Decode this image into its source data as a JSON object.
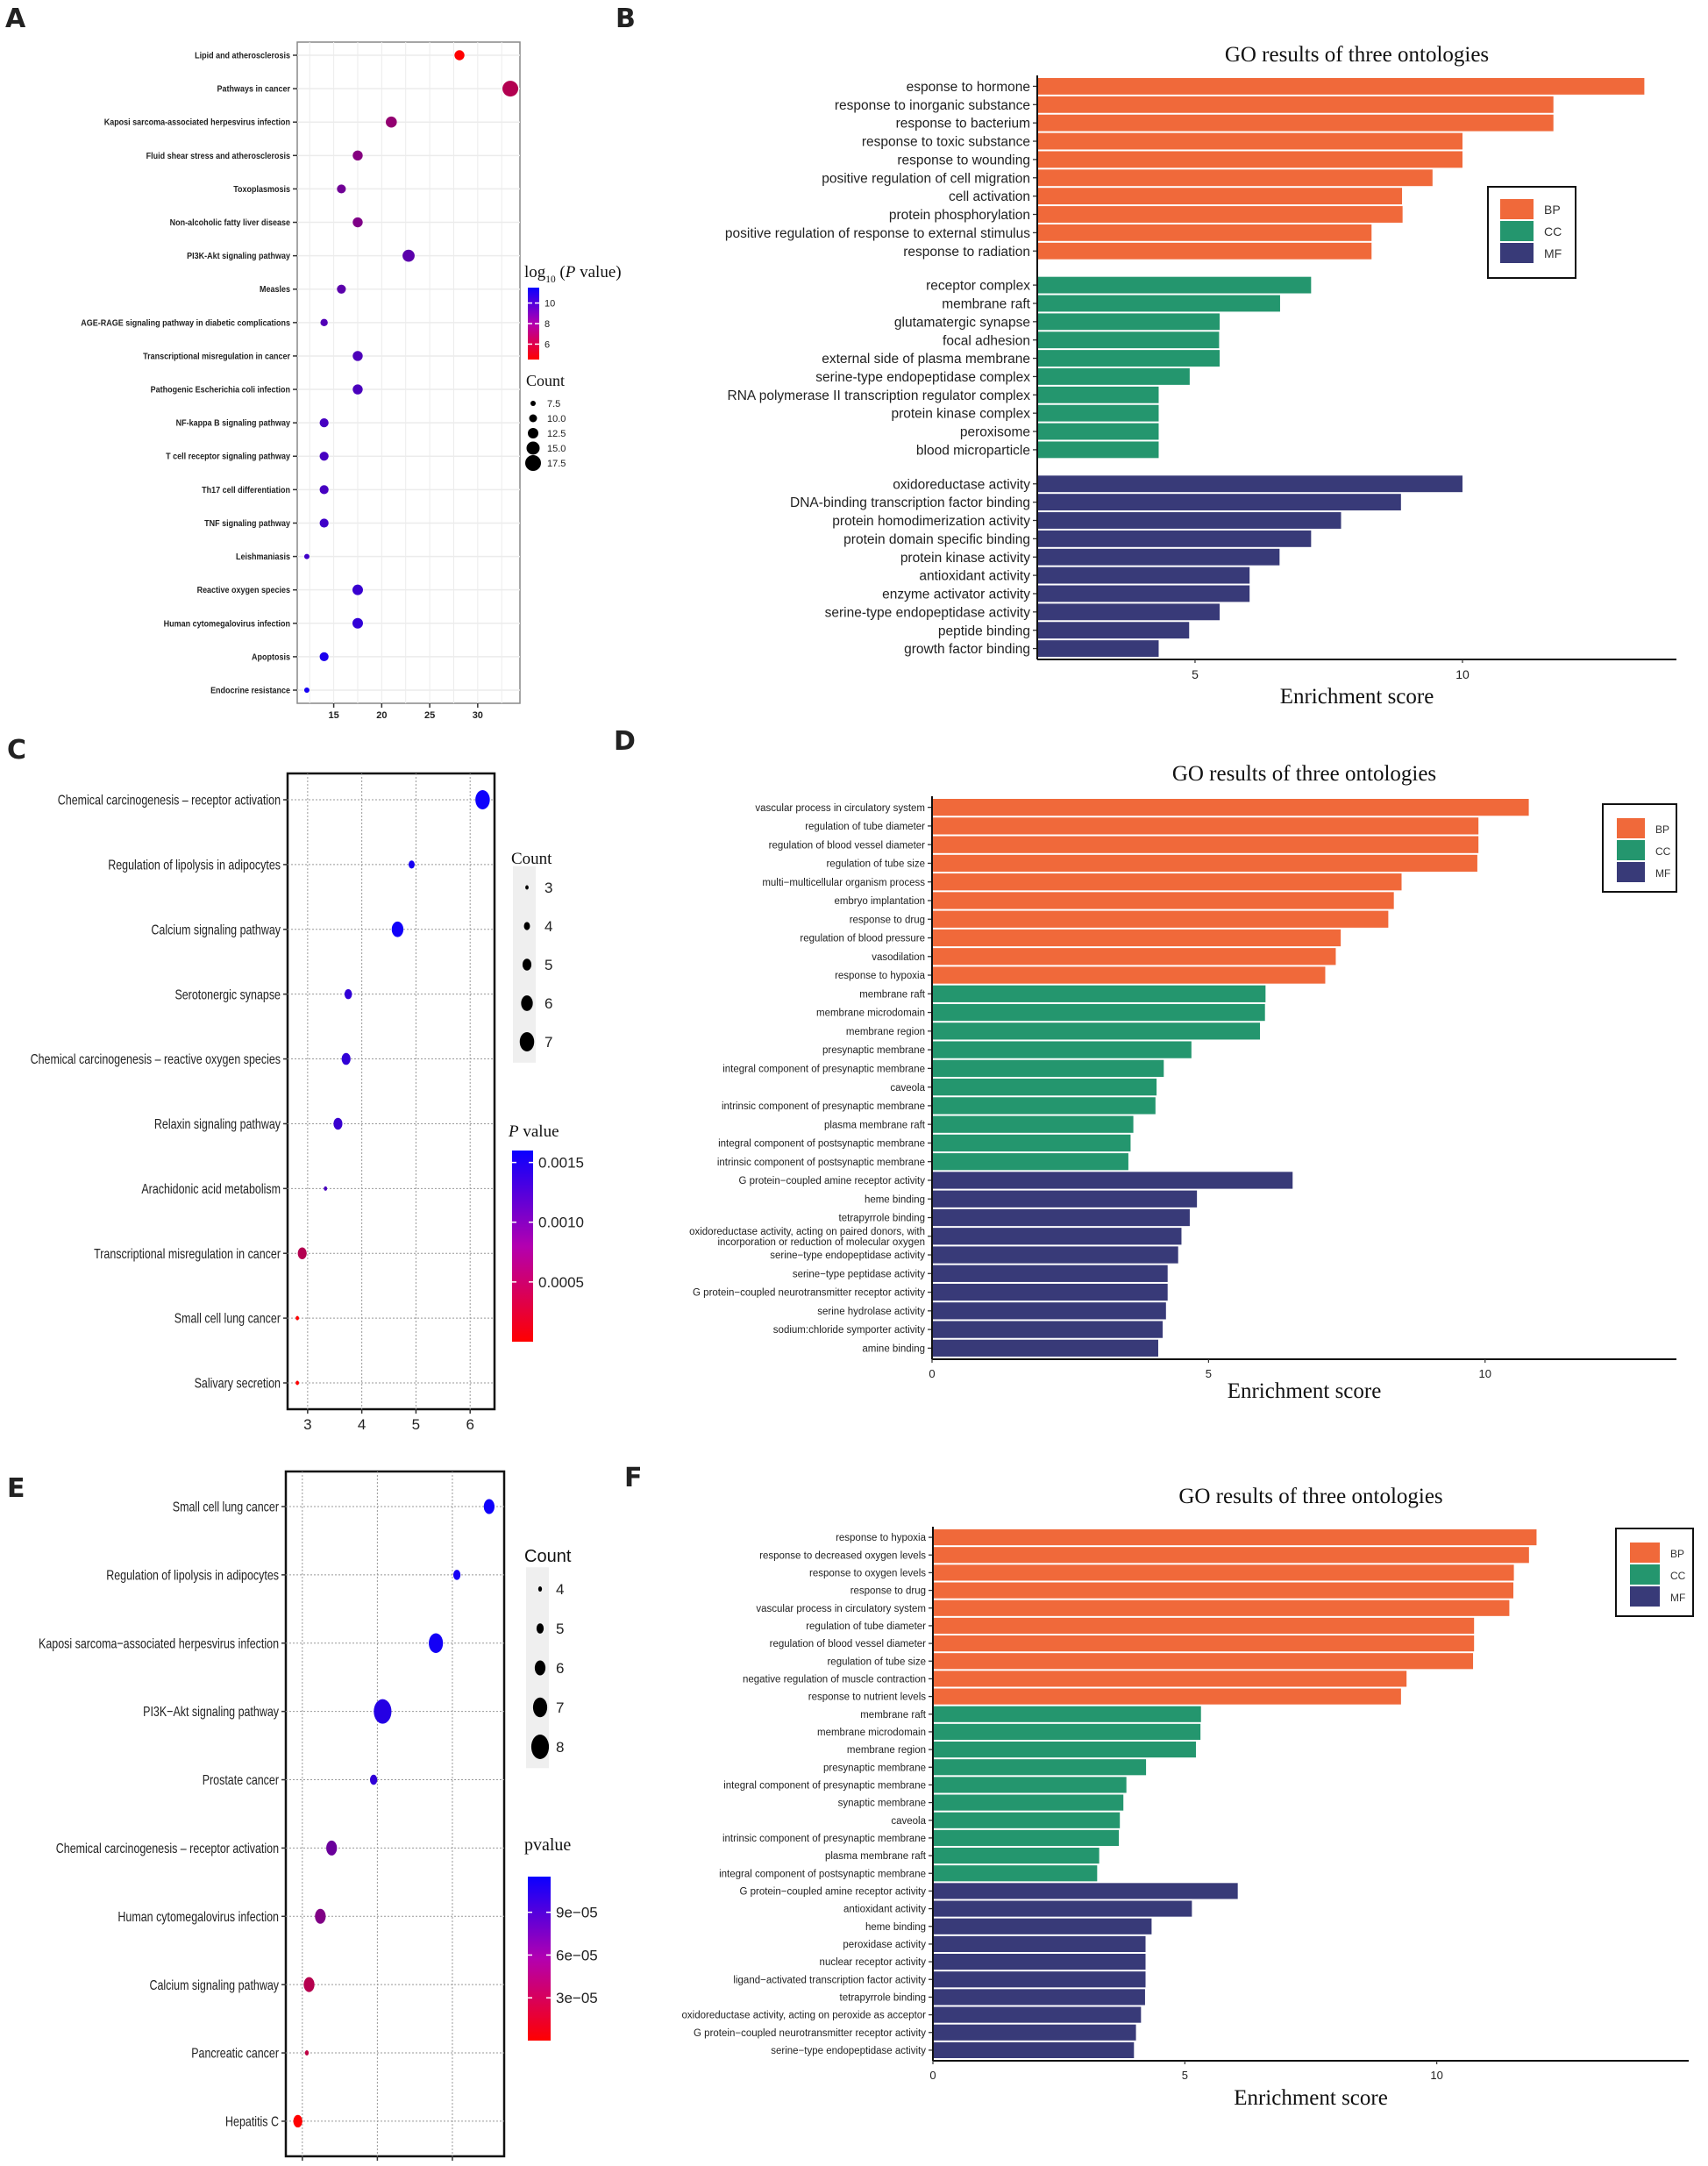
{
  "panels": {
    "A": {
      "letter": "A"
    },
    "B": {
      "letter": "B"
    },
    "C": {
      "letter": "C"
    },
    "D": {
      "letter": "D"
    },
    "E": {
      "letter": "E"
    },
    "F": {
      "letter": "F"
    }
  },
  "colors": {
    "BP": "#f0693a",
    "CC": "#24966e",
    "MF": "#383a78",
    "low": "#0b00ff",
    "high": "#ff0000"
  },
  "chart_data": [
    {
      "id": "A",
      "type": "scatter",
      "subtype": "bubble",
      "title": "",
      "xlabel": "",
      "ylabel": "",
      "xlim": [
        11.2,
        34.4
      ],
      "xticks": [
        15,
        20,
        25,
        30
      ],
      "grid": true,
      "color_legend": {
        "title_main": "log",
        "title_sub": "10",
        "title_rest": " (P value)",
        "ticks": [
          10,
          8,
          6
        ],
        "range": [
          4.5,
          11.5
        ]
      },
      "size_legend": {
        "title": "Count",
        "ticks": [
          "7.5",
          "10.0",
          "12.5",
          "15.0",
          "17.5"
        ]
      },
      "legend_position": "right",
      "categories": [
        "Lipid and atherosclerosis",
        "Pathways in cancer",
        "Kaposi sarcoma-associated herpesvirus infection",
        "Fluid shear stress and atherosclerosis",
        "Toxoplasmosis",
        "Non-alcoholic fatty liver disease",
        "PI3K-Akt signaling pathway",
        "Measles",
        "AGE-RAGE signaling pathway in diabetic complications",
        "Transcriptional misregulation in cancer",
        "Pathogenic Escherichia coli infection",
        "NF-kappa B signaling pathway",
        "T cell receptor signaling pathway",
        "Th17 cell differentiation",
        "TNF signaling pathway",
        "Leishmaniasis",
        "Reactive oxygen species",
        "Human cytomegalovirus infection",
        "Apoptosis",
        "Endocrine resistance"
      ],
      "x": [
        28.1,
        33.4,
        21.0,
        17.5,
        15.8,
        17.5,
        22.8,
        15.8,
        14.0,
        17.5,
        17.5,
        14.0,
        14.0,
        14.0,
        14.0,
        12.2,
        17.5,
        17.5,
        14.0,
        12.2
      ],
      "count": [
        12,
        17.5,
        13,
        12,
        11,
        12,
        14,
        11,
        9.5,
        12,
        12,
        11,
        11,
        11,
        11,
        7.5,
        12.5,
        12.5,
        11,
        7.5
      ],
      "color_value": [
        11.5,
        9.3,
        8.4,
        8.0,
        7.4,
        7.8,
        6.8,
        6.8,
        6.5,
        6.4,
        6.3,
        6.2,
        6.2,
        6.2,
        6.0,
        6.0,
        5.8,
        5.6,
        5.0,
        4.8
      ]
    },
    {
      "id": "B",
      "type": "bar",
      "orientation": "horizontal",
      "title": "GO results of three ontologies",
      "xlabel": "Enrichment score",
      "ylabel": "",
      "xlim": [
        2.05,
        14.0
      ],
      "xticks": [
        5,
        10
      ],
      "legend": [
        "BP",
        "CC",
        "MF"
      ],
      "legend_position": "right",
      "grouped_gaps": true,
      "series": [
        {
          "name": "BP",
          "categories": [
            "esponse to hormone",
            "response to inorganic substance",
            "response to bacterium",
            "response to toxic substance",
            "response to wounding",
            "positive regulation of cell migration",
            "cell activation",
            "protein phosphorylation",
            "positive regulation of response to external stimulus",
            "response to radiation"
          ],
          "values": [
            13.4,
            11.7,
            11.7,
            10.0,
            10.0,
            9.44,
            8.87,
            8.88,
            8.3,
            8.3
          ]
        },
        {
          "name": "CC",
          "categories": [
            "receptor complex",
            "membrane raft",
            "glutamatergic synapse",
            "focal adhesion",
            "external side of plasma membrane",
            "serine-type endopeptidase complex",
            "RNA polymerase II transcription regulator complex",
            "protein kinase complex",
            "peroxisome",
            "blood microparticle"
          ],
          "values": [
            7.17,
            6.59,
            5.46,
            5.45,
            5.46,
            4.9,
            4.32,
            4.32,
            4.32,
            4.32
          ]
        },
        {
          "name": "MF",
          "categories": [
            "oxidoreductase activity",
            "DNA-binding transcription factor binding",
            "protein homodimerization activity",
            "protein domain specific binding",
            "protein kinase activity",
            "antioxidant activity",
            "enzyme activator activity",
            "serine-type endopeptidase activity",
            "peptide binding",
            "growth factor binding"
          ],
          "values": [
            10.0,
            8.85,
            7.73,
            7.17,
            6.58,
            6.02,
            6.02,
            5.46,
            4.89,
            4.32
          ]
        }
      ]
    },
    {
      "id": "C",
      "type": "scatter",
      "subtype": "bubble",
      "title": "",
      "xlabel": "",
      "ylabel": "",
      "xlim": [
        2.63,
        6.45
      ],
      "xticks": [
        3,
        4,
        5,
        6
      ],
      "grid": true,
      "size_legend": {
        "title": "Count",
        "ticks": [
          "3",
          "4",
          "5",
          "6",
          "7"
        ]
      },
      "color_legend": {
        "title_italic": "P",
        "title_rest": " value",
        "ticks": [
          "0.0015",
          "0.0010",
          "0.0005"
        ],
        "tick_values": [
          0.0015,
          0.001,
          0.0005
        ],
        "range": [
          0.0,
          0.0016
        ]
      },
      "legend_position": "right",
      "categories": [
        "Chemical carcinogenesis – receptor activation",
        "Regulation of lipolysis in adipocytes",
        "Calcium signaling pathway",
        "Serotonergic synapse",
        "Chemical carcinogenesis – reactive oxygen species",
        "Relaxin signaling pathway",
        "Arachidonic acid metabolism",
        "Transcriptional misregulation in cancer",
        "Small cell lung cancer",
        "Salivary secretion"
      ],
      "x": [
        6.23,
        4.92,
        4.66,
        3.75,
        3.71,
        3.56,
        3.33,
        2.9,
        2.81,
        2.81
      ],
      "count": [
        7,
        4,
        6,
        4.5,
        5,
        5,
        3,
        5,
        3,
        3
      ],
      "color_value": [
        2e-05,
        8e-05,
        4e-05,
        0.00025,
        0.00025,
        0.0003,
        0.0004,
        0.0011,
        0.0016,
        0.0016
      ]
    },
    {
      "id": "D",
      "type": "bar",
      "orientation": "horizontal",
      "title": "GO results of three ontologies",
      "xlabel": "Enrichment score",
      "ylabel": "",
      "xlim": [
        0,
        13.46
      ],
      "xticks": [
        0,
        5,
        10
      ],
      "legend": [
        "BP",
        "CC",
        "MF"
      ],
      "legend_position": "top-right",
      "grouped_gaps": false,
      "series": [
        {
          "name": "BP",
          "categories": [
            "vascular process in circulatory system",
            "regulation of tube diameter",
            "regulation of blood vessel diameter",
            "regulation of tube size",
            "multi−multicellular organism process",
            "embryo implantation",
            "response to drug",
            "regulation of blood pressure",
            "vasodilation",
            "response to hypoxia"
          ],
          "values": [
            10.79,
            9.88,
            9.88,
            9.86,
            8.49,
            8.35,
            8.25,
            7.39,
            7.3,
            7.11
          ]
        },
        {
          "name": "CC",
          "categories": [
            "membrane raft",
            "membrane microdomain",
            "membrane region",
            "presynaptic membrane",
            "integral component of presynaptic membrane",
            "caveola",
            "intrinsic component of presynaptic membrane",
            "plasma membrane raft",
            "integral component of postsynaptic membrane",
            "intrinsic component of postsynaptic membrane"
          ],
          "values": [
            6.03,
            6.02,
            5.93,
            4.69,
            4.19,
            4.06,
            4.04,
            3.64,
            3.59,
            3.55
          ]
        },
        {
          "name": "MF",
          "categories": [
            "G protein−coupled amine receptor activity",
            "heme binding",
            "tetrapyrrole binding",
            "oxidoreductase activity, acting on paired donors, with\nincorporation or reduction of molecular oxygen",
            "serine−type endopeptidase activity",
            "serine−type peptidase activity",
            "G protein−coupled neurotransmitter receptor activity",
            "serine hydrolase activity",
            "sodium:chloride symporter activity",
            "amine binding"
          ],
          "values": [
            6.52,
            4.79,
            4.66,
            4.51,
            4.45,
            4.26,
            4.26,
            4.23,
            4.17,
            4.09
          ]
        }
      ]
    },
    {
      "id": "E",
      "type": "scatter",
      "subtype": "bubble",
      "title": "",
      "xlabel": "",
      "ylabel": "",
      "xlim": [
        3.78,
        6.69
      ],
      "xticks": [
        4,
        5,
        6
      ],
      "grid": true,
      "size_legend": {
        "title": "Count",
        "ticks": [
          "4",
          "5",
          "6",
          "7",
          "8"
        ]
      },
      "color_legend": {
        "title": "pvalue",
        "ticks": [
          "9e−05",
          "6e−05",
          "3e−05"
        ],
        "tick_values": [
          9e-05,
          6e-05,
          3e-05
        ],
        "range": [
          0.0,
          0.000115
        ]
      },
      "legend_position": "right",
      "categories": [
        "Small cell lung cancer",
        "Regulation of lipolysis in adipocytes",
        "Kaposi sarcoma−associated herpesvirus infection",
        "PI3K−Akt signaling pathway",
        "Prostate cancer",
        "Chemical carcinogenesis – receptor activation",
        "Human cytomegalovirus infection",
        "Calcium signaling pathway",
        "Pancreatic cancer",
        "Hepatitis C"
      ],
      "x": [
        6.49,
        6.06,
        5.78,
        5.07,
        4.95,
        4.39,
        4.24,
        4.09,
        4.06,
        3.94
      ],
      "count": [
        6,
        5,
        7,
        8,
        5,
        6,
        6,
        6,
        4,
        5.5
      ],
      "color_value": [
        2e-06,
        5e-06,
        4e-06,
        1.2e-05,
        1.8e-05,
        4.5e-05,
        5.5e-05,
        8e-05,
        8.5e-05,
        0.000115
      ]
    },
    {
      "id": "F",
      "type": "bar",
      "orientation": "horizontal",
      "title": "GO results of three ontologies",
      "xlabel": "Enrichment score",
      "ylabel": "",
      "xlim": [
        0,
        15
      ],
      "xticks": [
        0,
        5,
        10
      ],
      "legend": [
        "BP",
        "CC",
        "MF"
      ],
      "legend_position": "top-right",
      "grouped_gaps": false,
      "series": [
        {
          "name": "BP",
          "categories": [
            "response to hypoxia",
            "response to decreased oxygen levels",
            "response to oxygen levels",
            "response to drug",
            "vascular process in circulatory system",
            "regulation of tube diameter",
            "regulation of blood vessel diameter",
            "regulation of tube size",
            "negative regulation of muscle contraction",
            "response to nutrient levels"
          ],
          "values": [
            11.98,
            11.83,
            11.53,
            11.52,
            11.44,
            10.74,
            10.74,
            10.72,
            9.4,
            9.29
          ]
        },
        {
          "name": "CC",
          "categories": [
            "membrane raft",
            "membrane microdomain",
            "membrane region",
            "presynaptic membrane",
            "integral component of presynaptic membrane",
            "synaptic membrane",
            "caveola",
            "intrinsic component of presynaptic membrane",
            "plasma membrane raft",
            "integral component of postsynaptic membrane"
          ],
          "values": [
            5.32,
            5.31,
            5.22,
            4.23,
            3.84,
            3.78,
            3.71,
            3.69,
            3.3,
            3.26
          ]
        },
        {
          "name": "MF",
          "categories": [
            "G protein−coupled amine receptor activity",
            "antioxidant activity",
            "heme binding",
            "peroxidase activity",
            "nuclear receptor activity",
            "ligand−activated transcription factor activity",
            "tetrapyrrole binding",
            "oxidoreductase activity, acting on peroxide as acceptor",
            "G protein−coupled neurotransmitter receptor activity",
            "serine−type endopeptidase activity"
          ],
          "values": [
            6.05,
            5.14,
            4.34,
            4.22,
            4.22,
            4.22,
            4.21,
            4.13,
            4.03,
            3.99
          ]
        }
      ]
    }
  ]
}
